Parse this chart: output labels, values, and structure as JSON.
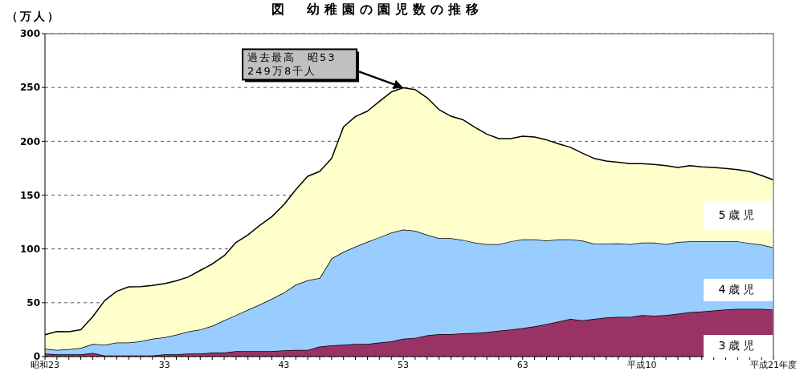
{
  "chart_data": {
    "type": "area",
    "stacked": true,
    "title": "図　幼稚園の園児数の推移",
    "ylabel": "（万人）",
    "categories": [
      "昭和23",
      null,
      null,
      null,
      null,
      null,
      null,
      null,
      null,
      null,
      "33",
      null,
      null,
      null,
      null,
      null,
      null,
      null,
      null,
      null,
      "43",
      null,
      null,
      null,
      null,
      null,
      null,
      null,
      null,
      null,
      "53",
      null,
      null,
      null,
      null,
      null,
      null,
      null,
      null,
      null,
      "63",
      null,
      null,
      null,
      null,
      null,
      null,
      null,
      null,
      null,
      "平成10",
      null,
      null,
      null,
      null,
      null,
      null,
      null,
      null,
      null,
      null,
      "平成21年度"
    ],
    "series": [
      {
        "name": "3歳児",
        "color": "#993366",
        "values": [
          2.7,
          2,
          2,
          2,
          3.4,
          0.9,
          0.9,
          0.9,
          0.9,
          0.9,
          2,
          2,
          2.7,
          2.7,
          3.7,
          3.7,
          5,
          5,
          5,
          5,
          5.7,
          6.2,
          6.2,
          9.3,
          10.5,
          11,
          11.7,
          11.7,
          13,
          14.2,
          16.6,
          17.4,
          19.8,
          20.8,
          20.8,
          21.5,
          22,
          22.7,
          24,
          25.2,
          26.4,
          28.1,
          30.1,
          32.5,
          35,
          33.7,
          35,
          36.2,
          36.9,
          36.9,
          38.6,
          37.9,
          38.6,
          39.8,
          41.3,
          41.8,
          42.8,
          43.8,
          44.3,
          44.3,
          44.3,
          43.5
        ]
      },
      {
        "name": "4歳児",
        "color": "#99ccff",
        "values": [
          4.6,
          4.1,
          4.8,
          6,
          8.3,
          10.1,
          12.1,
          12.1,
          13.3,
          15.7,
          15.8,
          18.3,
          20.5,
          22.5,
          24.7,
          30,
          33.6,
          38.5,
          43.4,
          48.8,
          53.7,
          60.6,
          64.7,
          63.6,
          80.7,
          86.3,
          90.5,
          94.9,
          97.8,
          101,
          101.4,
          99.5,
          93.4,
          89.2,
          89.2,
          86.9,
          83.9,
          81.7,
          80.4,
          81.9,
          82.4,
          80.7,
          77.7,
          76.3,
          73.8,
          74.1,
          69.7,
          68.5,
          68.3,
          67.5,
          67.3,
          68,
          65.8,
          66.6,
          65.8,
          65.3,
          64.3,
          63.3,
          62.8,
          61.1,
          59.7,
          58
        ]
      },
      {
        "name": "5歳児",
        "color": "#ffffcc",
        "values": [
          13,
          17.1,
          16.2,
          17,
          25.3,
          41,
          47.6,
          51.8,
          50.8,
          49.4,
          50,
          50.1,
          50.8,
          54.8,
          57.6,
          60,
          67.4,
          69.5,
          73.6,
          76.2,
          81.6,
          88.2,
          96.6,
          99.1,
          92.8,
          116.2,
          120.8,
          121.4,
          126.2,
          130.6,
          131.8,
          131.1,
          127.2,
          119.4,
          113.3,
          111.6,
          107.1,
          102.3,
          98.1,
          95.4,
          95.9,
          95.2,
          93.5,
          88.8,
          85.6,
          81.2,
          79.3,
          77,
          75.3,
          74.8,
          73.3,
          72.6,
          72.9,
          69.2,
          70.2,
          69.2,
          68.5,
          67.7,
          66.5,
          66.5,
          64.2,
          62.6
        ]
      }
    ],
    "ylim": [
      0,
      300
    ],
    "yticks": [
      0,
      50,
      100,
      150,
      200,
      250,
      300
    ],
    "grid": "y",
    "annotations": [
      "過去最高　昭53\n249万8千人"
    ]
  }
}
